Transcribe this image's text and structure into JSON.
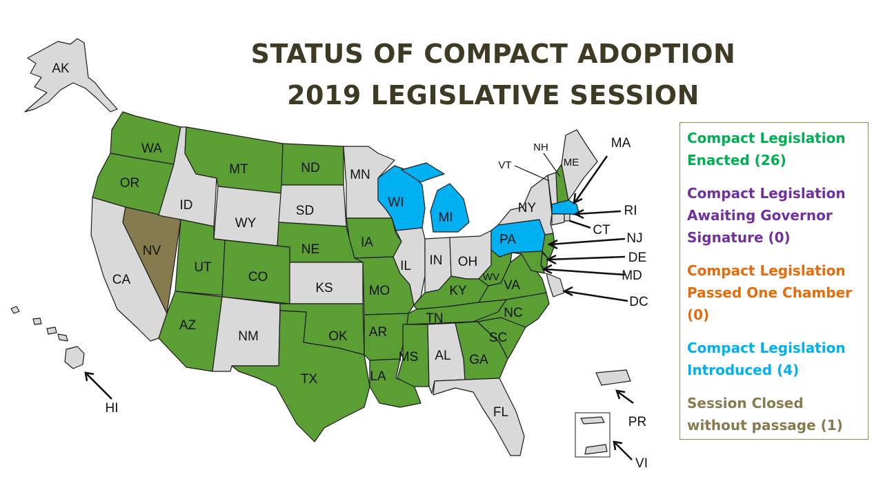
{
  "title": {
    "line1": "STATUS OF COMPACT ADOPTION",
    "line2": "2019 LEGISLATIVE SESSION"
  },
  "colors": {
    "enacted": "#5b9f34",
    "awaiting": "#7030a0",
    "passed_one": "#e46c0a",
    "introduced": "#00b0f0",
    "closed": "#857b4e",
    "none": "#d9d9d9"
  },
  "legend": [
    {
      "text": "Compact Legislation Enacted (26)",
      "color": "#00b050"
    },
    {
      "text": "Compact Legislation Awaiting Governor Signature (0)",
      "color": "#7030a0"
    },
    {
      "text": "Compact Legislation Passed One Chamber (0)",
      "color": "#e46c0a"
    },
    {
      "text": "Compact Legislation Introduced (4)",
      "color": "#00b0f0"
    },
    {
      "text": "Session Closed without passage (1)",
      "color": "#857b4e"
    }
  ],
  "states": {
    "AK": {
      "label": "AK",
      "status": "none"
    },
    "HI": {
      "label": "HI",
      "status": "none"
    },
    "WA": {
      "label": "WA",
      "status": "enacted"
    },
    "OR": {
      "label": "OR",
      "status": "enacted"
    },
    "CA": {
      "label": "CA",
      "status": "none"
    },
    "NV": {
      "label": "NV",
      "status": "closed"
    },
    "ID": {
      "label": "ID",
      "status": "none"
    },
    "MT": {
      "label": "MT",
      "status": "enacted"
    },
    "WY": {
      "label": "WY",
      "status": "none"
    },
    "UT": {
      "label": "UT",
      "status": "enacted"
    },
    "CO": {
      "label": "CO",
      "status": "enacted"
    },
    "AZ": {
      "label": "AZ",
      "status": "enacted"
    },
    "NM": {
      "label": "NM",
      "status": "none"
    },
    "ND": {
      "label": "ND",
      "status": "enacted"
    },
    "SD": {
      "label": "SD",
      "status": "none"
    },
    "NE": {
      "label": "NE",
      "status": "enacted"
    },
    "KS": {
      "label": "KS",
      "status": "none"
    },
    "OK": {
      "label": "OK",
      "status": "enacted"
    },
    "TX": {
      "label": "TX",
      "status": "enacted"
    },
    "MN": {
      "label": "MN",
      "status": "none"
    },
    "IA": {
      "label": "IA",
      "status": "enacted"
    },
    "MO": {
      "label": "MO",
      "status": "enacted"
    },
    "AR": {
      "label": "AR",
      "status": "enacted"
    },
    "LA": {
      "label": "LA",
      "status": "enacted"
    },
    "WI": {
      "label": "WI",
      "status": "introduced"
    },
    "IL": {
      "label": "IL",
      "status": "none"
    },
    "MI": {
      "label": "MI",
      "status": "introduced"
    },
    "IN": {
      "label": "IN",
      "status": "none"
    },
    "OH": {
      "label": "OH",
      "status": "none"
    },
    "KY": {
      "label": "KY",
      "status": "enacted"
    },
    "TN": {
      "label": "TN",
      "status": "enacted"
    },
    "MS": {
      "label": "MS",
      "status": "enacted"
    },
    "AL": {
      "label": "AL",
      "status": "none"
    },
    "GA": {
      "label": "GA",
      "status": "enacted"
    },
    "FL": {
      "label": "FL",
      "status": "none"
    },
    "SC": {
      "label": "SC",
      "status": "enacted"
    },
    "NC": {
      "label": "NC",
      "status": "enacted"
    },
    "VA": {
      "label": "VA",
      "status": "enacted"
    },
    "WV": {
      "label": "WV",
      "status": "enacted"
    },
    "PA": {
      "label": "PA",
      "status": "introduced"
    },
    "NY": {
      "label": "NY",
      "status": "none"
    },
    "VT": {
      "label": "VT",
      "status": "none"
    },
    "NH": {
      "label": "NH",
      "status": "enacted"
    },
    "ME": {
      "label": "ME",
      "status": "none"
    },
    "MA": {
      "label": "MA",
      "status": "introduced"
    },
    "RI": {
      "label": "RI",
      "status": "none"
    },
    "CT": {
      "label": "CT",
      "status": "none"
    },
    "NJ": {
      "label": "NJ",
      "status": "enacted"
    },
    "DE": {
      "label": "DE",
      "status": "enacted"
    },
    "MD": {
      "label": "MD",
      "status": "enacted"
    },
    "DC": {
      "label": "DC",
      "status": "none"
    },
    "PR": {
      "label": "PR",
      "status": "none"
    },
    "VI": {
      "label": "VI",
      "status": "none"
    }
  }
}
